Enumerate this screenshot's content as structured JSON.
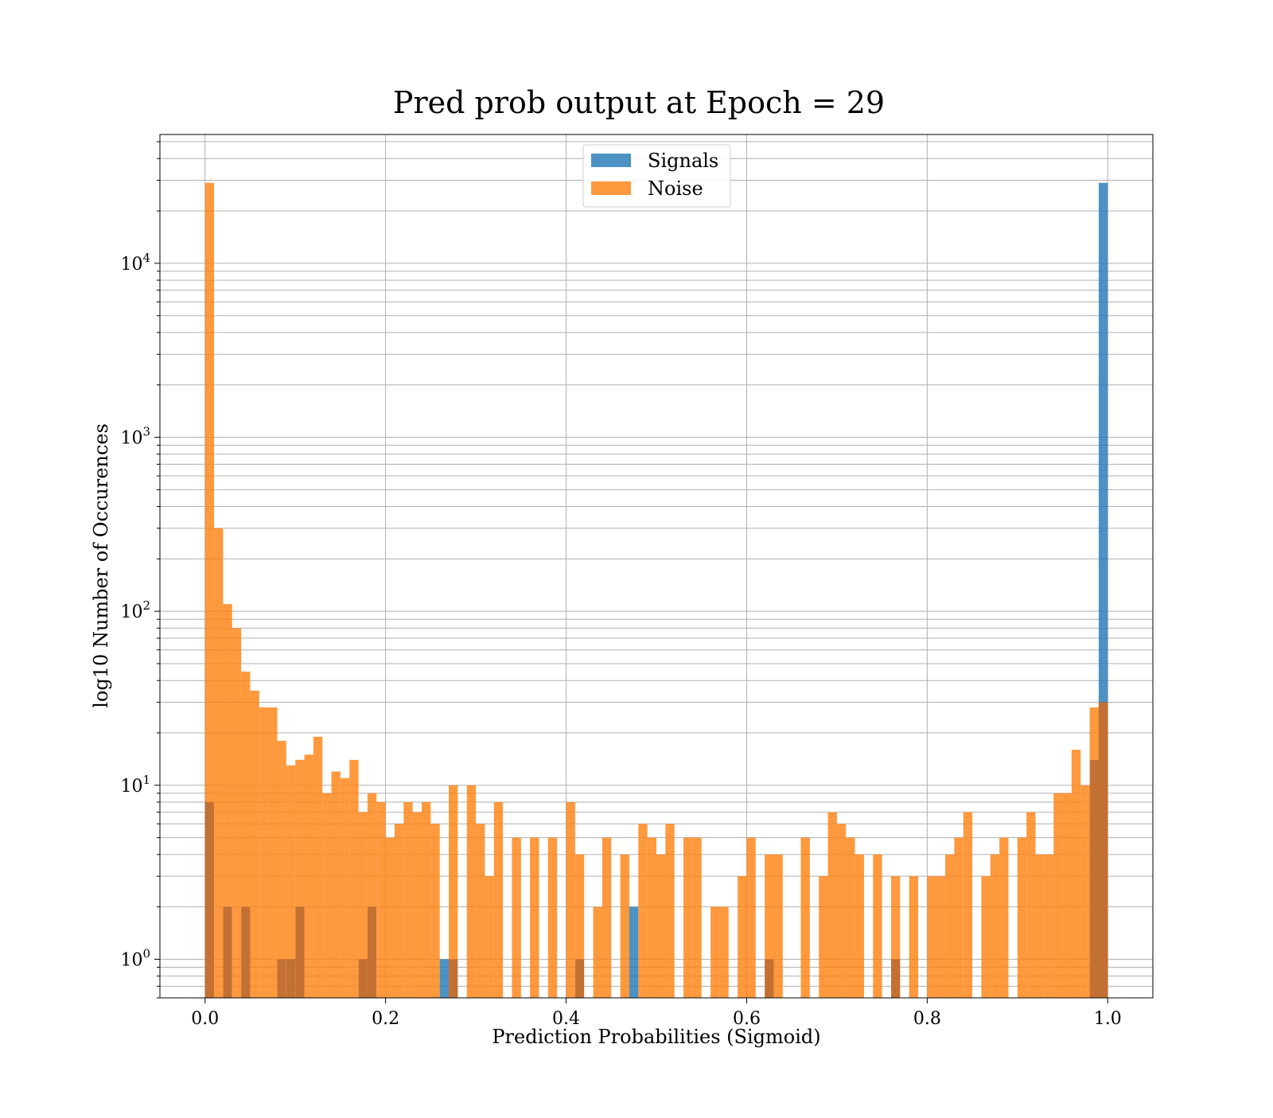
{
  "chart_data": {
    "type": "bar",
    "title": "Pred prob output at Epoch = 29",
    "xlabel": "Prediction Probabilities (Sigmoid)",
    "ylabel": "log10 Number of Occurences",
    "xlim": [
      -0.05,
      1.05
    ],
    "ylim": [
      0.6,
      55000
    ],
    "y_scale": "log",
    "grid": true,
    "legend_position": "top-center",
    "bin_width": 0.01,
    "x_ticks": [
      0.0,
      0.2,
      0.4,
      0.6,
      0.8,
      1.0
    ],
    "x_tick_labels": [
      "0.0",
      "0.2",
      "0.4",
      "0.6",
      "0.8",
      "1.0"
    ],
    "y_ticks": [
      1,
      10,
      100,
      1000,
      10000
    ],
    "y_tick_labels": [
      {
        "base": "10",
        "exp": "0"
      },
      {
        "base": "10",
        "exp": "1"
      },
      {
        "base": "10",
        "exp": "2"
      },
      {
        "base": "10",
        "exp": "3"
      },
      {
        "base": "10",
        "exp": "4"
      }
    ],
    "series": [
      {
        "name": "Signals",
        "color": "#1f77b4",
        "values": [
          8,
          0,
          2,
          0,
          2,
          0,
          0,
          0,
          1,
          1,
          2,
          0,
          0,
          0,
          0,
          0,
          0,
          1,
          2,
          0,
          0,
          0,
          0,
          0,
          0,
          0,
          1,
          1,
          0,
          0,
          0,
          0,
          0,
          0,
          0,
          0,
          0,
          0,
          0,
          0,
          0,
          1,
          0,
          0,
          0,
          0,
          0,
          2,
          0,
          0,
          0,
          0,
          0,
          0,
          0,
          0,
          0,
          0,
          0,
          0,
          0,
          0,
          1,
          0,
          0,
          0,
          0,
          0,
          0,
          0,
          0,
          0,
          0,
          0,
          0,
          0,
          1,
          0,
          0,
          0,
          0,
          0,
          0,
          0,
          0,
          0,
          0,
          0,
          0,
          0,
          0,
          0,
          0,
          0,
          0,
          0,
          0,
          0,
          14,
          29000
        ]
      },
      {
        "name": "Noise",
        "color": "#ff7f0e",
        "values": [
          29000,
          300,
          110,
          80,
          45,
          35,
          28,
          28,
          18,
          13,
          14,
          15,
          19,
          9,
          12,
          11,
          14,
          7,
          9,
          8,
          5,
          6,
          8,
          7,
          8,
          6,
          0,
          10,
          0,
          10,
          6,
          3,
          8,
          0,
          5,
          0,
          5,
          0,
          5,
          0,
          8,
          4,
          0,
          2,
          5,
          0,
          4,
          0,
          6,
          5,
          4,
          6,
          0,
          5,
          5,
          0,
          2,
          2,
          0,
          3,
          5,
          0,
          4,
          4,
          0,
          0,
          5,
          0,
          3,
          7,
          6,
          5,
          4,
          0,
          4,
          0,
          3,
          0,
          3,
          0,
          3,
          3,
          4,
          5,
          7,
          0,
          3,
          4,
          5,
          0,
          5,
          7,
          4,
          4,
          9,
          9,
          16,
          10,
          28,
          30
        ]
      }
    ],
    "overlap_color": "#c37133"
  }
}
